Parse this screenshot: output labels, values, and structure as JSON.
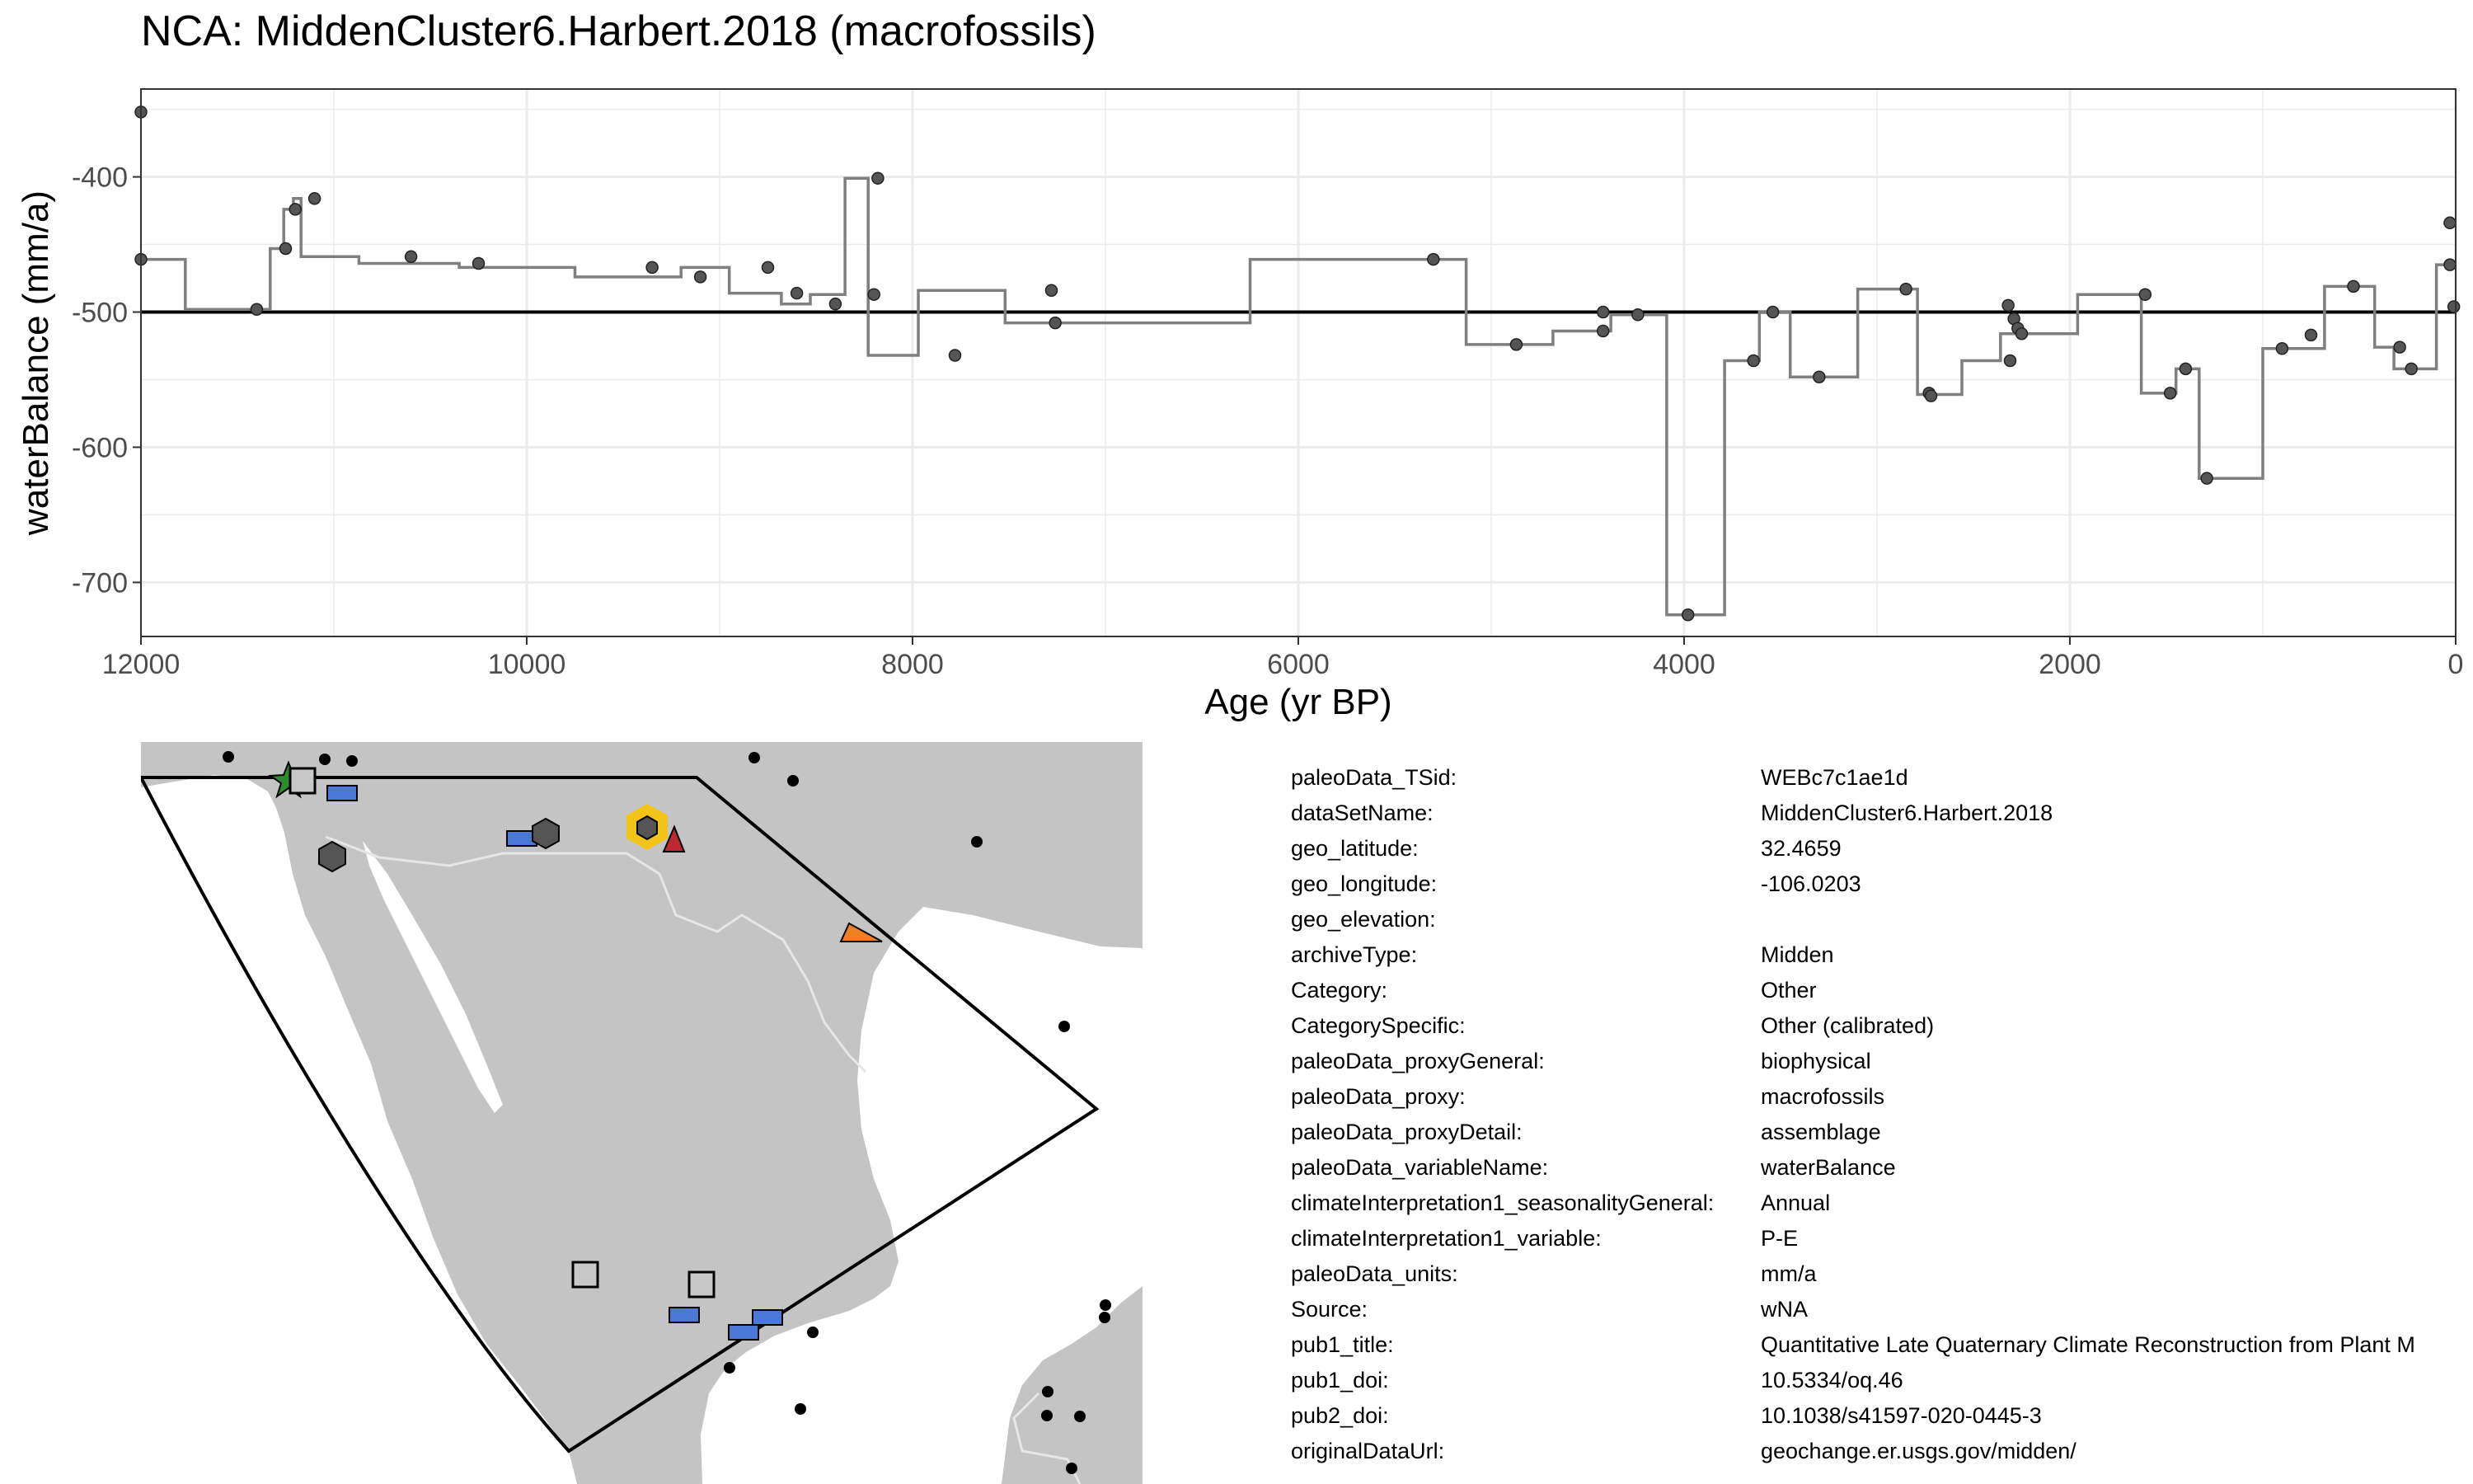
{
  "page_title": "NCA: MiddenCluster6.Harbert.2018 (macrofossils)",
  "chart_data": {
    "type": "line",
    "title": "NCA: MiddenCluster6.Harbert.2018 (macrofossils)",
    "xlabel": "Age (yr BP)",
    "ylabel": "waterBalance (mm/a)",
    "xlim": [
      12000,
      0
    ],
    "x_reversed": true,
    "ylim": [
      -740,
      -335
    ],
    "x_ticks": [
      12000,
      10000,
      8000,
      6000,
      4000,
      2000,
      0
    ],
    "y_ticks": [
      -400,
      -500,
      -600,
      -700
    ],
    "grid": true,
    "reference_line_y": -500,
    "line_style": "step",
    "line_color": "#7f7f7f",
    "point_color": "#555555",
    "points": [
      {
        "x": 12000,
        "y": -352
      },
      {
        "x": 12000,
        "y": -461
      },
      {
        "x": 11400,
        "y": -498
      },
      {
        "x": 11250,
        "y": -453
      },
      {
        "x": 11200,
        "y": -424
      },
      {
        "x": 11100,
        "y": -416
      },
      {
        "x": 10600,
        "y": -459
      },
      {
        "x": 10250,
        "y": -464
      },
      {
        "x": 9350,
        "y": -467
      },
      {
        "x": 9100,
        "y": -474
      },
      {
        "x": 8750,
        "y": -467
      },
      {
        "x": 8600,
        "y": -486
      },
      {
        "x": 8400,
        "y": -494
      },
      {
        "x": 8200,
        "y": -487
      },
      {
        "x": 8180,
        "y": -401
      },
      {
        "x": 7780,
        "y": -532
      },
      {
        "x": 7280,
        "y": -484
      },
      {
        "x": 7260,
        "y": -508
      },
      {
        "x": 5300,
        "y": -461
      },
      {
        "x": 4870,
        "y": -524
      },
      {
        "x": 4420,
        "y": -500
      },
      {
        "x": 4420,
        "y": -514
      },
      {
        "x": 4240,
        "y": -502
      },
      {
        "x": 3980,
        "y": -724
      },
      {
        "x": 3640,
        "y": -536
      },
      {
        "x": 3540,
        "y": -500
      },
      {
        "x": 3300,
        "y": -548
      },
      {
        "x": 2850,
        "y": -483
      },
      {
        "x": 2730,
        "y": -560
      },
      {
        "x": 2720,
        "y": -562
      },
      {
        "x": 2320,
        "y": -495
      },
      {
        "x": 2310,
        "y": -536
      },
      {
        "x": 2290,
        "y": -505
      },
      {
        "x": 2270,
        "y": -512
      },
      {
        "x": 2250,
        "y": -516
      },
      {
        "x": 1610,
        "y": -487
      },
      {
        "x": 1480,
        "y": -560
      },
      {
        "x": 1400,
        "y": -542
      },
      {
        "x": 1290,
        "y": -623
      },
      {
        "x": 900,
        "y": -527
      },
      {
        "x": 750,
        "y": -517
      },
      {
        "x": 530,
        "y": -481
      },
      {
        "x": 290,
        "y": -526
      },
      {
        "x": 230,
        "y": -542
      },
      {
        "x": 30,
        "y": -465
      },
      {
        "x": 30,
        "y": -434
      },
      {
        "x": 10,
        "y": -496
      }
    ],
    "step_x": [
      12000,
      11770,
      11770,
      11330,
      11330,
      11260,
      11260,
      11210,
      11210,
      11170,
      11170,
      10870,
      10870,
      10350,
      10350,
      9750,
      9750,
      9200,
      9200,
      8950,
      8950,
      8680,
      8680,
      8530,
      8530,
      8350,
      8350,
      8230,
      8230,
      7970,
      7970,
      7520,
      7520,
      6250,
      6250,
      5130,
      5130,
      4680,
      4680,
      4380,
      4380,
      4090,
      4090,
      3790,
      3790,
      3610,
      3610,
      3450,
      3450,
      3100,
      3100,
      2790,
      2790,
      2560,
      2560,
      2360,
      2360,
      1960,
      1960,
      1630,
      1630,
      1450,
      1450,
      1330,
      1330,
      1000,
      1000,
      680,
      680,
      420,
      420,
      320,
      320,
      100,
      100,
      0
    ],
    "step_y": [
      -461,
      -461,
      -498,
      -498,
      -453,
      -453,
      -424,
      -424,
      -416,
      -416,
      -459,
      -459,
      -464,
      -464,
      -467,
      -467,
      -474,
      -474,
      -467,
      -467,
      -486,
      -486,
      -494,
      -494,
      -487,
      -487,
      -401,
      -401,
      -532,
      -532,
      -484,
      -484,
      -508,
      -508,
      -461,
      -461,
      -524,
      -524,
      -514,
      -514,
      -502,
      -502,
      -724,
      -724,
      -536,
      -536,
      -500,
      -500,
      -548,
      -548,
      -483,
      -483,
      -561,
      -561,
      -536,
      -536,
      -516,
      -516,
      -487,
      -487,
      -560,
      -560,
      -542,
      -542,
      -623,
      -623,
      -527,
      -527,
      -481,
      -481,
      -526,
      -526,
      -542,
      -542,
      -465,
      -465
    ]
  },
  "metadata": [
    {
      "key": "paleoData_TSid:",
      "value": "WEBc7c1ae1d"
    },
    {
      "key": "dataSetName:",
      "value": "MiddenCluster6.Harbert.2018"
    },
    {
      "key": "geo_latitude:",
      "value": "32.4659"
    },
    {
      "key": "geo_longitude:",
      "value": "-106.0203"
    },
    {
      "key": "geo_elevation:",
      "value": ""
    },
    {
      "key": "archiveType:",
      "value": "Midden"
    },
    {
      "key": "Category:",
      "value": "Other"
    },
    {
      "key": "CategorySpecific:",
      "value": "Other (calibrated)"
    },
    {
      "key": "paleoData_proxyGeneral:",
      "value": "biophysical"
    },
    {
      "key": "paleoData_proxy:",
      "value": "macrofossils"
    },
    {
      "key": "paleoData_proxyDetail:",
      "value": "assemblage"
    },
    {
      "key": "paleoData_variableName:",
      "value": "waterBalance"
    },
    {
      "key": "climateInterpretation1_seasonalityGeneral:",
      "value": "Annual"
    },
    {
      "key": "climateInterpretation1_variable:",
      "value": "P-E"
    },
    {
      "key": "paleoData_units:",
      "value": "mm/a"
    },
    {
      "key": "Source:",
      "value": "wNA"
    },
    {
      "key": "pub1_title:",
      "value": "Quantitative Late Quaternary Climate Reconstruction from Plant M"
    },
    {
      "key": "pub1_doi:",
      "value": "10.5334/oq.46"
    },
    {
      "key": "pub2_doi:",
      "value": "10.1038/s41597-020-0445-3"
    },
    {
      "key": "originalDataUrl:",
      "value": "geochange.er.usgs.gov/midden/"
    }
  ],
  "map": {
    "land_color": "#c4c4c4",
    "border_color": "#e6e6e6",
    "region_outline_color": "#000000",
    "symbols": [
      {
        "shape": "star",
        "color": "#2e8b2e",
        "name": "green-star"
      },
      {
        "shape": "square",
        "color": "#c8c8c8",
        "name": "gray-square"
      },
      {
        "shape": "rect",
        "color": "#4a78d6",
        "name": "blue-rectangle"
      },
      {
        "shape": "hexagon",
        "color": "#555555",
        "name": "dark-hexagon"
      },
      {
        "shape": "hexagon",
        "color": "#f2c417",
        "name": "highlighted-site-hexagon"
      },
      {
        "shape": "triangle",
        "color": "#c0282f",
        "name": "red-triangle"
      },
      {
        "shape": "triangle",
        "color": "#f07f22",
        "name": "orange-triangle"
      },
      {
        "shape": "dot",
        "color": "#000000",
        "name": "black-dot"
      }
    ]
  }
}
